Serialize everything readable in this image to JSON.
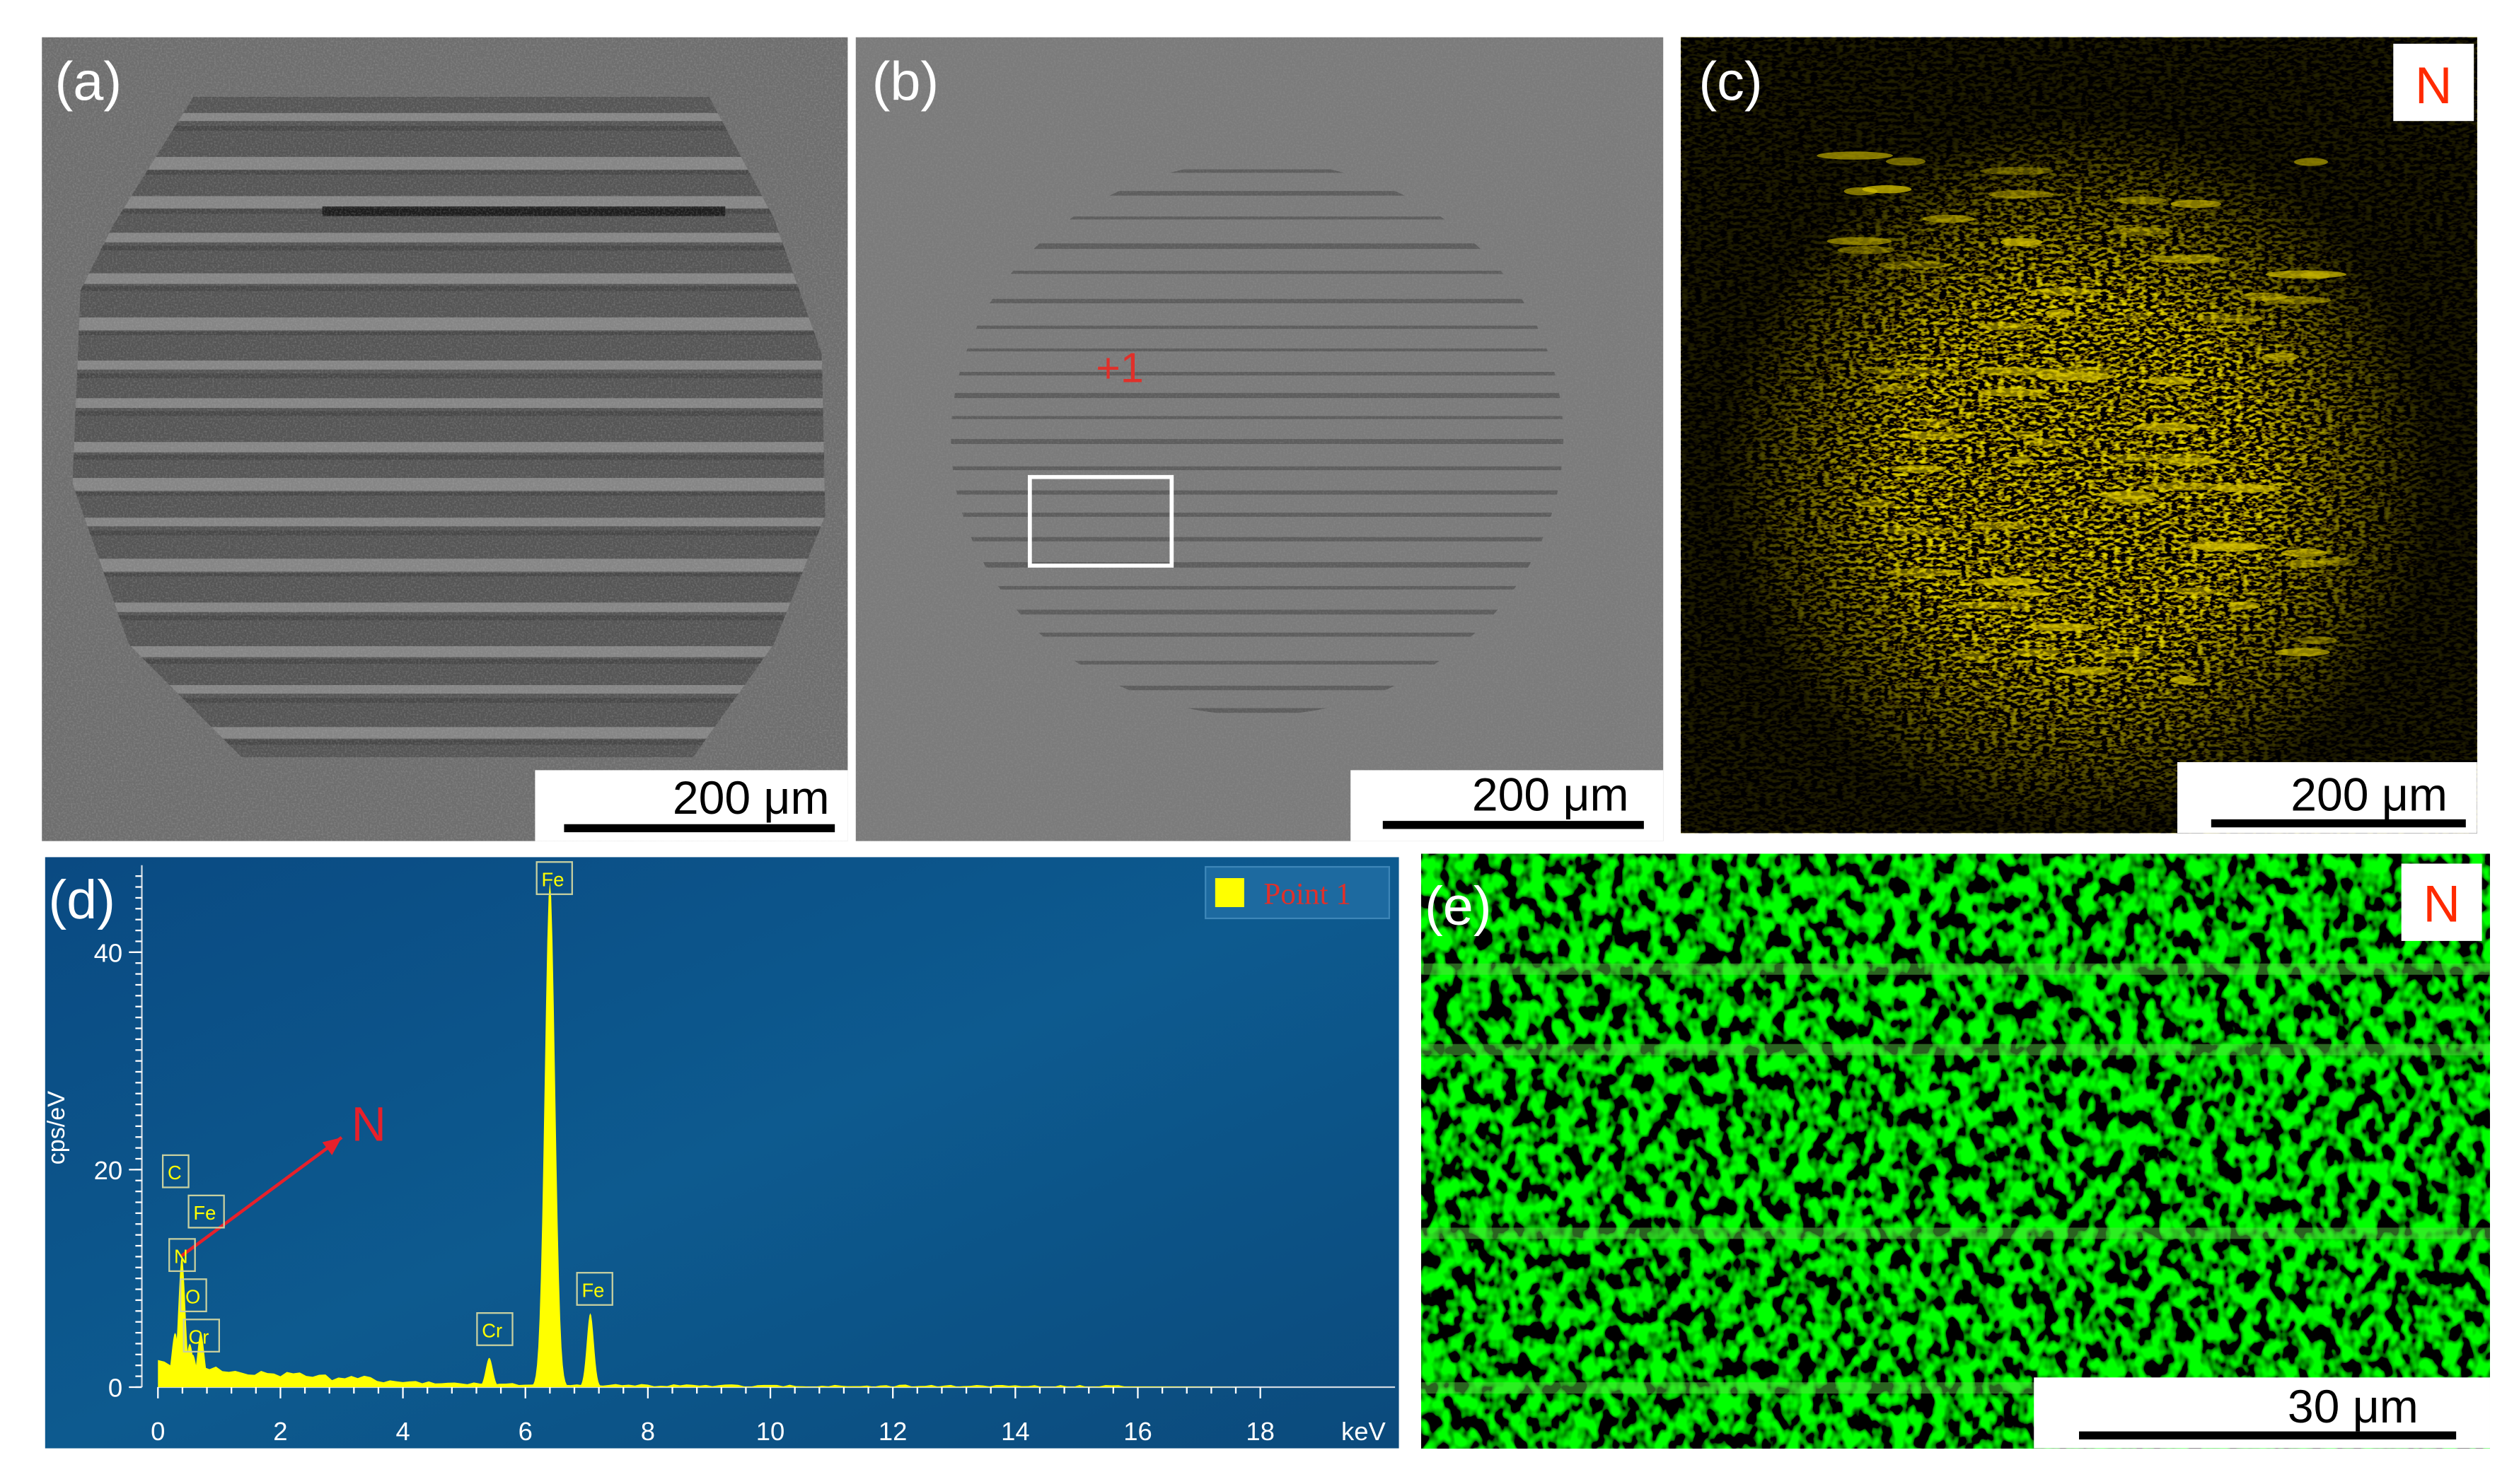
{
  "panels": {
    "a": {
      "label": "(a)",
      "scale_bar": "200 μm"
    },
    "b": {
      "label": "(b)",
      "scale_bar": "200 μm",
      "point": "+1"
    },
    "c": {
      "label": "(c)",
      "element": "N",
      "scale_bar": "200 μm"
    },
    "d": {
      "label": "(d)",
      "annotation": "N",
      "chart_data": {
        "type": "spectrum",
        "x_label": "keV",
        "y_label": "cps/eV",
        "xlim": [
          0,
          20.2
        ],
        "ylim": [
          0,
          48
        ],
        "xticks": [
          0,
          2,
          4,
          6,
          8,
          10,
          12,
          14,
          16,
          18
        ],
        "yticks": [
          0,
          20,
          40
        ],
        "legend": "upper right",
        "series": [
          {
            "name": "Point 1",
            "color": "#ffff00",
            "x": [
              0.28,
              0.39,
              0.52,
              0.57,
              0.7,
              5.41,
              6.4,
              7.06
            ],
            "values": [
              5,
              12,
              4,
              3,
              5,
              2.7,
              46.5,
              6.8
            ],
            "peak_labels": [
              "C",
              "N",
              "O",
              "Cr",
              "Fe",
              "Cr",
              "Fe",
              "Fe"
            ]
          }
        ]
      }
    },
    "e": {
      "label": "(e)",
      "element": "N",
      "scale_bar": "30 μm"
    }
  }
}
